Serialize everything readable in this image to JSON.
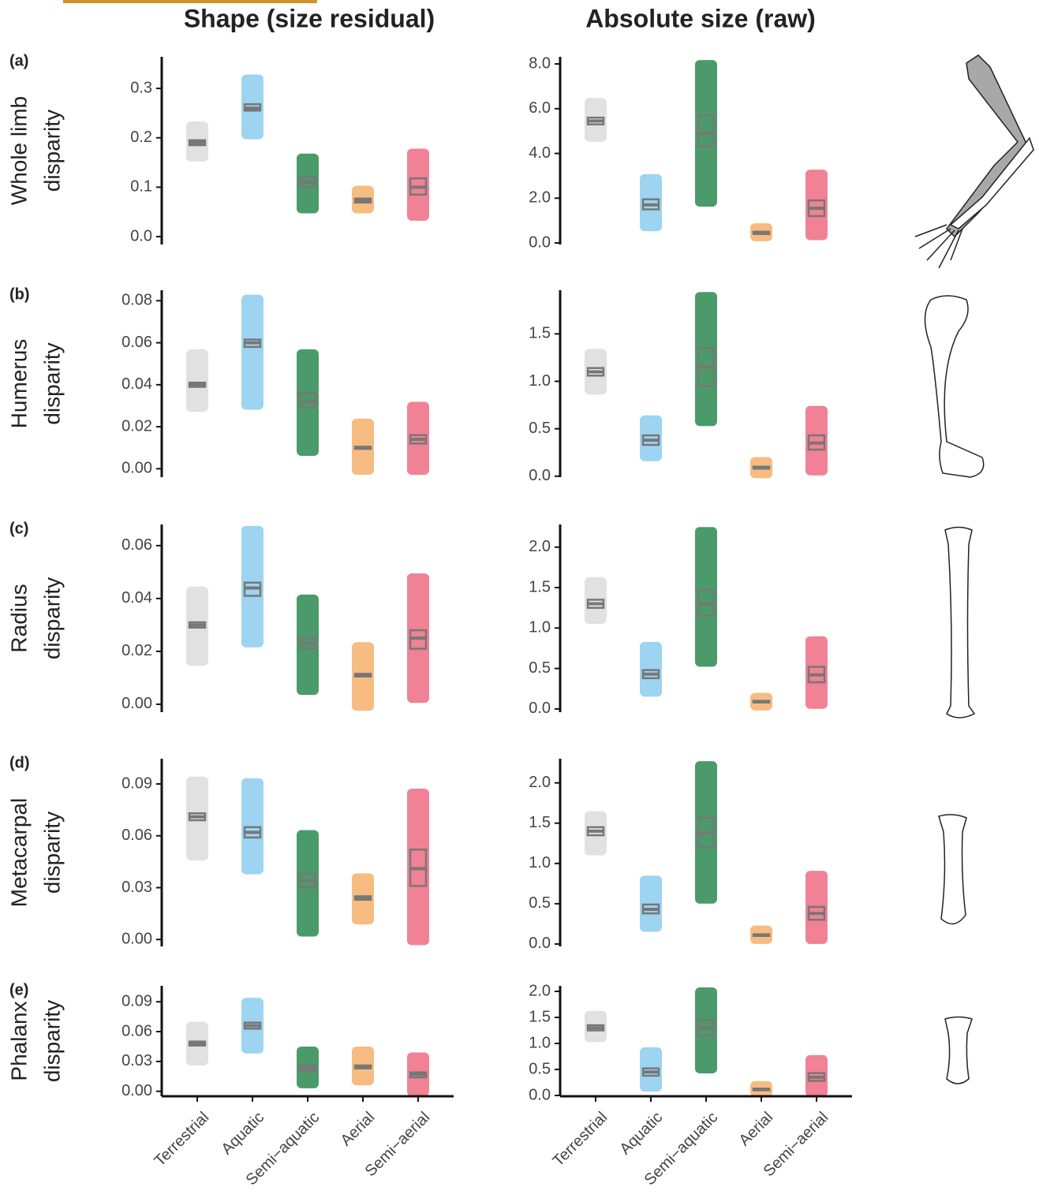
{
  "columns": [
    "Shape (size residual)",
    "Absolute size (raw)"
  ],
  "categories": [
    "Terrestrial",
    "Aquatic",
    "Semi−aquatic",
    "Aerial",
    "Semi−aerial"
  ],
  "colors": [
    "#dcdcdc",
    "#8ccdee",
    "#2b8a50",
    "#f4b06c",
    "#ee6b82"
  ],
  "rows": [
    {
      "panel": "(a)",
      "ylabel": [
        "Whole limb",
        "disparity"
      ]
    },
    {
      "panel": "(b)",
      "ylabel": [
        "Humerus",
        "disparity"
      ]
    },
    {
      "panel": "(c)",
      "ylabel": [
        "Radius",
        "disparity"
      ]
    },
    {
      "panel": "(d)",
      "ylabel": [
        "Metacarpal",
        "disparity"
      ]
    },
    {
      "panel": "(e)",
      "ylabel": [
        "Phalanx",
        "disparity"
      ]
    }
  ],
  "chart_data": [
    {
      "type": "box",
      "ylim": [
        -0.016,
        0.364
      ],
      "yticks": [
        {
          "value": 0,
          "label": "0.0"
        },
        0.1,
        0.2,
        0.3
      ],
      "median": [
        0.19,
        0.26,
        0.11,
        0.073,
        0.1
      ],
      "q1": [
        0.185,
        0.255,
        0.1,
        0.069,
        0.085
      ],
      "q3": [
        0.195,
        0.268,
        0.12,
        0.077,
        0.118
      ],
      "min": [
        0.16,
        0.205,
        0.055,
        0.055,
        0.04
      ],
      "max": [
        0.225,
        0.32,
        0.16,
        0.095,
        0.17
      ]
    },
    {
      "type": "box",
      "ylim": [
        -0.07,
        8.32
      ],
      "yticks": [
        {
          "value": 0,
          "label": "0.0"
        },
        {
          "value": 2,
          "label": "2.0"
        },
        {
          "value": 4,
          "label": "4.0"
        },
        {
          "value": 6,
          "label": "6.0"
        },
        {
          "value": 8,
          "label": "8.0"
        }
      ],
      "median": [
        5.45,
        1.7,
        4.9,
        0.45,
        1.55
      ],
      "q1": [
        5.3,
        1.5,
        4.3,
        0.4,
        1.2
      ],
      "q3": [
        5.6,
        1.95,
        5.7,
        0.5,
        1.9
      ],
      "min": [
        4.7,
        0.7,
        1.8,
        0.25,
        0.3
      ],
      "max": [
        6.3,
        2.9,
        8.0,
        0.7,
        3.1
      ]
    },
    {
      "type": "box",
      "ylim": [
        -0.004,
        0.085
      ],
      "yticks": [
        {
          "value": 0,
          "label": "0.00"
        },
        0.02,
        0.04,
        0.06,
        0.08
      ],
      "median": [
        0.04,
        0.06,
        0.032,
        0.01,
        0.014
      ],
      "q1": [
        0.039,
        0.058,
        0.029,
        0.0095,
        0.012
      ],
      "q3": [
        0.041,
        0.0615,
        0.036,
        0.0105,
        0.016
      ],
      "min": [
        0.029,
        0.03,
        0.008,
        -0.001,
        -0.001
      ],
      "max": [
        0.055,
        0.081,
        0.055,
        0.022,
        0.03
      ]
    },
    {
      "type": "box",
      "ylim": [
        -0.01,
        1.96
      ],
      "yticks": [
        {
          "value": 0,
          "label": "0.0"
        },
        0.5,
        {
          "value": 1,
          "label": "1.0"
        },
        1.5
      ],
      "median": [
        1.1,
        0.38,
        1.15,
        0.09,
        0.35
      ],
      "q1": [
        1.06,
        0.33,
        0.95,
        0.08,
        0.28
      ],
      "q3": [
        1.14,
        0.43,
        1.35,
        0.1,
        0.43
      ],
      "min": [
        0.9,
        0.2,
        0.57,
        0.02,
        0.05
      ],
      "max": [
        1.3,
        0.6,
        1.9,
        0.16,
        0.7
      ]
    },
    {
      "type": "box",
      "ylim": [
        -0.003,
        0.068
      ],
      "yticks": [
        {
          "value": 0,
          "label": "0.00"
        },
        0.02,
        0.04,
        0.06
      ],
      "median": [
        0.03,
        0.044,
        0.023,
        0.011,
        0.025
      ],
      "q1": [
        0.029,
        0.041,
        0.021,
        0.0105,
        0.021
      ],
      "q3": [
        0.031,
        0.046,
        0.025,
        0.0115,
        0.028
      ],
      "min": [
        0.016,
        0.023,
        0.005,
        -0.001,
        0.002
      ],
      "max": [
        0.043,
        0.066,
        0.04,
        0.022,
        0.048
      ]
    },
    {
      "type": "box",
      "ylim": [
        -0.04,
        2.28
      ],
      "yticks": [
        {
          "value": 0,
          "label": "0.0"
        },
        0.5,
        {
          "value": 1,
          "label": "1.0"
        },
        1.5,
        {
          "value": 2,
          "label": "2.0"
        }
      ],
      "median": [
        1.3,
        0.43,
        1.3,
        0.09,
        0.42
      ],
      "q1": [
        1.25,
        0.38,
        1.15,
        0.08,
        0.33
      ],
      "q3": [
        1.35,
        0.48,
        1.47,
        0.1,
        0.52
      ],
      "min": [
        1.1,
        0.2,
        0.57,
        0.03,
        0.05
      ],
      "max": [
        1.58,
        0.78,
        2.2,
        0.15,
        0.85
      ]
    },
    {
      "type": "box",
      "ylim": [
        -0.004,
        0.1046
      ],
      "yticks": [
        {
          "value": 0,
          "label": "0.00"
        },
        0.03,
        0.06,
        0.09
      ],
      "median": [
        0.071,
        0.062,
        0.034,
        0.024,
        0.041
      ],
      "q1": [
        0.069,
        0.059,
        0.03,
        0.023,
        0.031
      ],
      "q3": [
        0.073,
        0.065,
        0.038,
        0.025,
        0.052
      ],
      "min": [
        0.048,
        0.04,
        0.004,
        0.011,
        -0.001
      ],
      "max": [
        0.092,
        0.091,
        0.061,
        0.036,
        0.085
      ]
    },
    {
      "type": "box",
      "ylim": [
        -0.03,
        2.3
      ],
      "yticks": [
        {
          "value": 0,
          "label": "0.0"
        },
        0.5,
        {
          "value": 1,
          "label": "1.0"
        },
        1.5,
        {
          "value": 2,
          "label": "2.0"
        }
      ],
      "median": [
        1.4,
        0.43,
        1.38,
        0.11,
        0.38
      ],
      "q1": [
        1.35,
        0.38,
        1.2,
        0.1,
        0.3
      ],
      "q3": [
        1.45,
        0.49,
        1.57,
        0.12,
        0.46
      ],
      "min": [
        1.15,
        0.2,
        0.55,
        0.05,
        0.05
      ],
      "max": [
        1.6,
        0.8,
        2.22,
        0.18,
        0.86
      ]
    },
    {
      "type": "box",
      "ylim": [
        -0.005,
        0.106
      ],
      "yticks": [
        {
          "value": 0,
          "label": "0.00"
        },
        0.03,
        0.06,
        0.09
      ],
      "median": [
        0.048,
        0.066,
        0.023,
        0.025,
        0.017
      ],
      "q1": [
        0.046,
        0.063,
        0.02,
        0.023,
        0.014
      ],
      "q3": [
        0.05,
        0.069,
        0.026,
        0.026,
        0.019
      ],
      "min": [
        0.03,
        0.042,
        0.007,
        0.01,
        -0.001
      ],
      "max": [
        0.066,
        0.09,
        0.041,
        0.041,
        0.035
      ]
    },
    {
      "type": "box",
      "ylim": [
        -0.015,
        2.106
      ],
      "yticks": [
        {
          "value": 0,
          "label": "0.0"
        },
        0.5,
        {
          "value": 1,
          "label": "1.0"
        },
        1.5,
        {
          "value": 2,
          "label": "2.0"
        }
      ],
      "median": [
        1.3,
        0.45,
        1.3,
        0.12,
        0.35
      ],
      "q1": [
        1.25,
        0.38,
        1.15,
        0.1,
        0.28
      ],
      "q3": [
        1.35,
        0.52,
        1.45,
        0.13,
        0.43
      ],
      "min": [
        1.1,
        0.15,
        0.5,
        0.05,
        0.05
      ],
      "max": [
        1.55,
        0.85,
        2.0,
        0.2,
        0.7
      ]
    }
  ]
}
